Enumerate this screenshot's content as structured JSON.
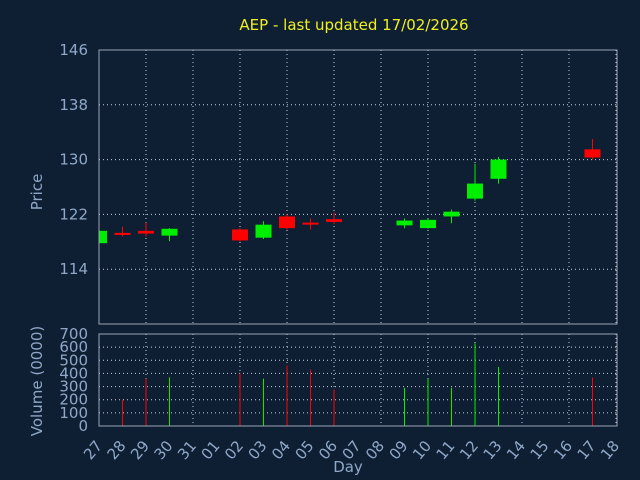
{
  "chart_data": {
    "type": "candlestick",
    "title": "AEP - last updated 17/02/2026",
    "ylabel_price": "Price",
    "ylabel_volume": "Volume (0000)",
    "xlabel": "Day",
    "price_ylim": [
      106,
      146
    ],
    "price_ticks": [
      "146",
      "138",
      "130",
      "122",
      "114"
    ],
    "price_tick_values": [
      146,
      138,
      130,
      122,
      114
    ],
    "volume_ylim": [
      0,
      700
    ],
    "volume_ticks": [
      "700",
      "600",
      "500",
      "400",
      "300",
      "200",
      "100",
      "0"
    ],
    "volume_tick_values": [
      700,
      600,
      500,
      400,
      300,
      200,
      100,
      0
    ],
    "days": [
      "27",
      "28",
      "29",
      "30",
      "31",
      "01",
      "02",
      "03",
      "04",
      "05",
      "06",
      "07",
      "08",
      "09",
      "10",
      "11",
      "12",
      "13",
      "14",
      "15",
      "16",
      "17",
      "18"
    ],
    "grid": true,
    "up_color": "#00ee00",
    "down_color": "#ff0000",
    "candles": [
      {
        "day": "27",
        "open": 117.8,
        "close": 119.6,
        "high": 119.6,
        "low": 117.8,
        "volume": 0
      },
      {
        "day": "28",
        "open": 119.3,
        "close": 119.0,
        "high": 120.2,
        "low": 118.8,
        "volume": 200
      },
      {
        "day": "29",
        "open": 119.6,
        "close": 119.2,
        "high": 120.8,
        "low": 118.8,
        "volume": 360
      },
      {
        "day": "30",
        "open": 118.9,
        "close": 119.9,
        "high": 120.0,
        "low": 118.1,
        "volume": 370
      },
      {
        "day": "02",
        "open": 119.8,
        "close": 118.2,
        "high": 120.0,
        "low": 118.0,
        "volume": 400
      },
      {
        "day": "03",
        "open": 118.6,
        "close": 120.5,
        "high": 121.0,
        "low": 118.4,
        "volume": 360
      },
      {
        "day": "04",
        "open": 121.7,
        "close": 120.0,
        "high": 122.0,
        "low": 119.8,
        "volume": 460
      },
      {
        "day": "05",
        "open": 120.8,
        "close": 120.6,
        "high": 121.4,
        "low": 119.8,
        "volume": 430
      },
      {
        "day": "06",
        "open": 121.3,
        "close": 120.9,
        "high": 122.3,
        "low": 120.6,
        "volume": 280
      },
      {
        "day": "09",
        "open": 120.4,
        "close": 121.1,
        "high": 121.4,
        "low": 120.0,
        "volume": 290
      },
      {
        "day": "10",
        "open": 120.0,
        "close": 121.2,
        "high": 121.4,
        "low": 119.9,
        "volume": 360
      },
      {
        "day": "11",
        "open": 121.7,
        "close": 122.4,
        "high": 122.7,
        "low": 120.7,
        "volume": 290
      },
      {
        "day": "12",
        "open": 124.3,
        "close": 126.5,
        "high": 129.4,
        "low": 124.0,
        "volume": 630
      },
      {
        "day": "13",
        "open": 127.2,
        "close": 130.0,
        "high": 130.4,
        "low": 126.5,
        "volume": 450
      },
      {
        "day": "17",
        "open": 131.5,
        "close": 130.3,
        "high": 133.0,
        "low": 130.0,
        "volume": 370
      }
    ]
  }
}
